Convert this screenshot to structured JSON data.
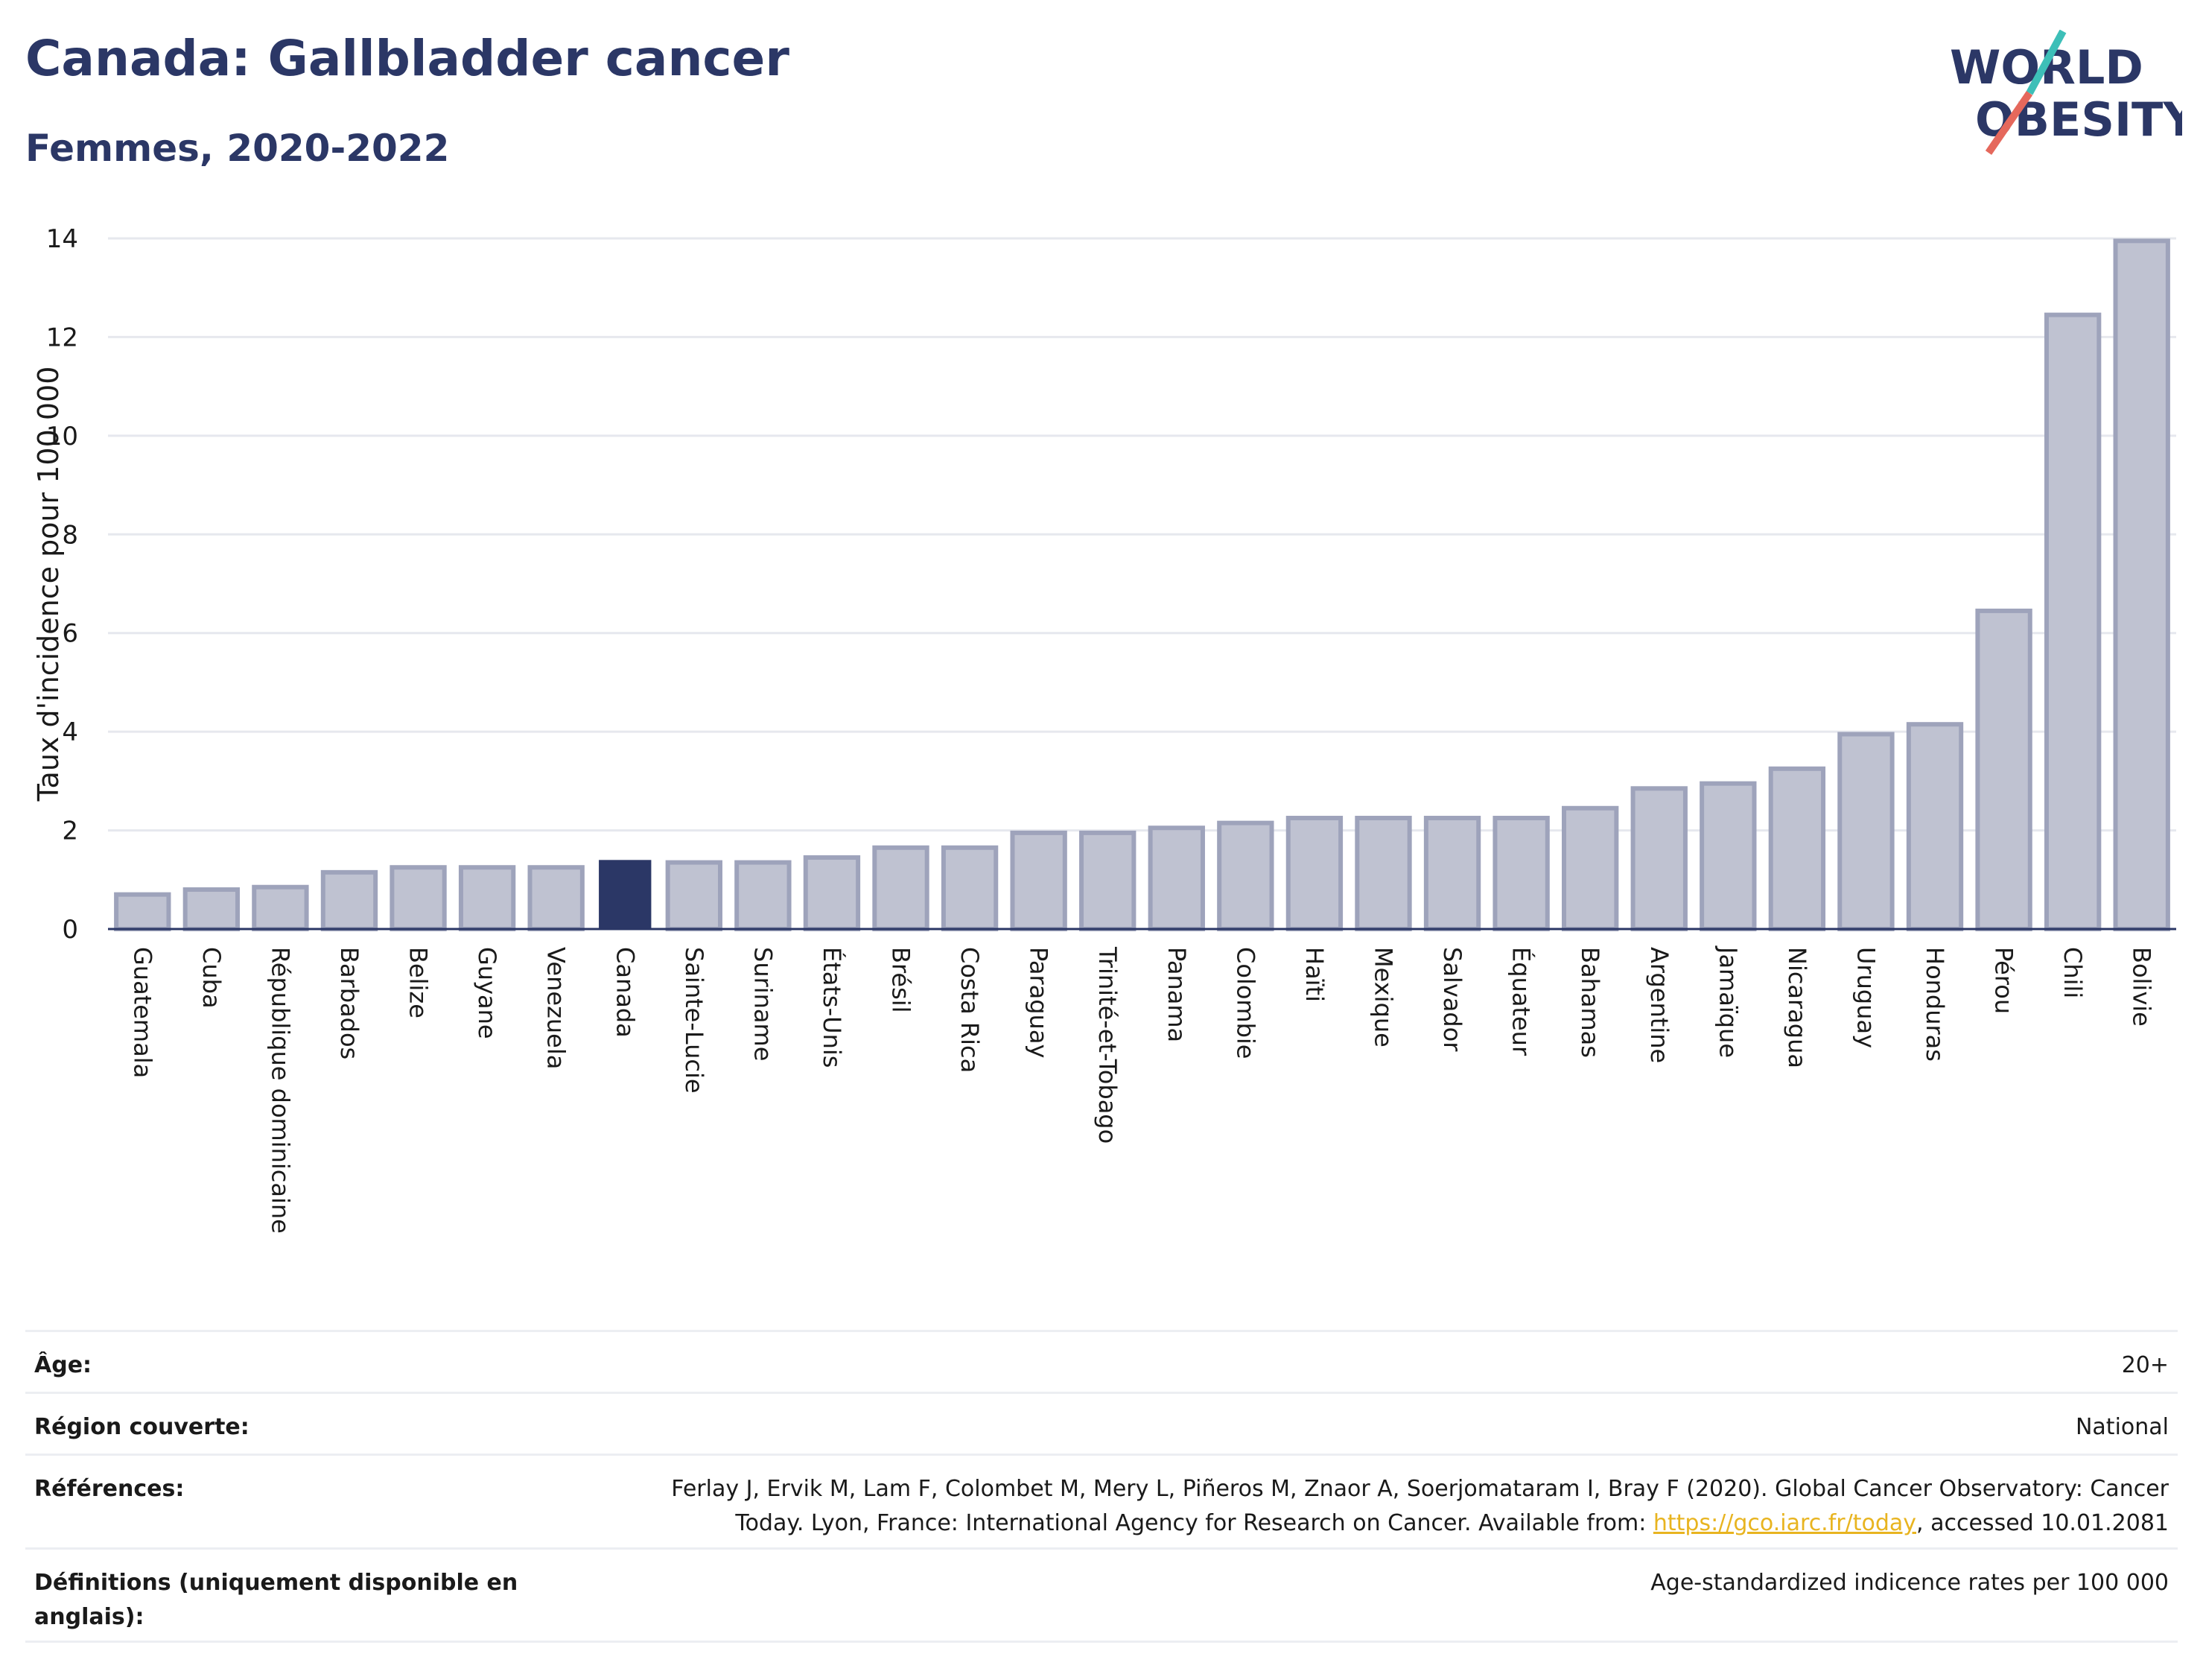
{
  "header": {
    "title": "Canada: Gallbladder cancer",
    "subtitle": "Femmes, 2020-2022"
  },
  "logo": {
    "line1": "WORLD",
    "line2": "OBESITY",
    "colors": {
      "text": "#2b3766",
      "slash_red": "#e5685c",
      "slash_teal": "#3dbfb8"
    }
  },
  "colors": {
    "bar": "#bfc2d1",
    "bar_stroke": "#9ea3bb",
    "highlight": "#2b3766",
    "grid": "#e6e8ee",
    "axis": "#2b3766"
  },
  "chart_data": {
    "type": "bar",
    "ylabel": "Taux d'incidence pour 100 000",
    "ylim": [
      0,
      14
    ],
    "yticks": [
      0,
      2,
      4,
      6,
      8,
      10,
      12,
      14
    ],
    "grid": true,
    "highlight": "Canada",
    "categories": [
      "Guatemala",
      "Cuba",
      "République dominicaine",
      "Barbados",
      "Belize",
      "Guyane",
      "Venezuela",
      "Canada",
      "Sainte-Lucie",
      "Suriname",
      "États-Unis",
      "Brésil",
      "Costa Rica",
      "Paraguay",
      "Trinité-et-Tobago",
      "Panama",
      "Colombie",
      "Haïti",
      "Mexique",
      "Salvador",
      "Équateur",
      "Bahamas",
      "Argentine",
      "Jamaïque",
      "Nicaragua",
      "Uruguay",
      "Honduras",
      "Pérou",
      "Chili",
      "Bolivie"
    ],
    "values": [
      0.7,
      0.8,
      0.85,
      1.15,
      1.25,
      1.25,
      1.25,
      1.4,
      1.35,
      1.35,
      1.45,
      1.65,
      1.65,
      1.95,
      1.95,
      2.05,
      2.15,
      2.25,
      2.25,
      2.25,
      2.25,
      2.45,
      2.85,
      2.95,
      3.25,
      3.95,
      4.15,
      6.45,
      12.45,
      13.95
    ]
  },
  "meta": {
    "age_label": "Âge:",
    "age_value": "20+",
    "region_label": "Région couverte:",
    "region_value": "National",
    "refs_label": "Références:",
    "refs_text": "Ferlay J, Ervik M, Lam F, Colombet M, Mery L, Piñeros M, Znaor A, Soerjomataram I, Bray F (2020). Global Cancer Observatory: Cancer Today. Lyon, France: International Agency for Research on Cancer. Available from: ",
    "refs_link": "https://gco.iarc.fr/today",
    "refs_after": ", accessed 10.01.2081",
    "defs_label": "Définitions (uniquement disponible en anglais):",
    "defs_value": "Age-standardized indicence rates per 100 000"
  }
}
